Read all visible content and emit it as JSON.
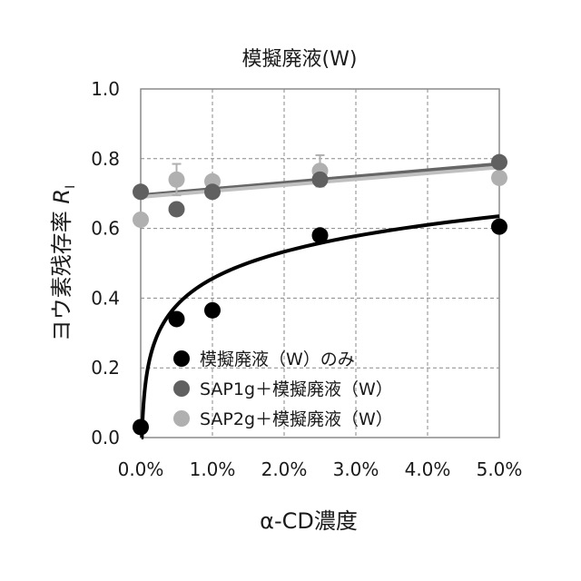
{
  "chart_data": {
    "type": "scatter",
    "title": "模擬廃液(W)",
    "xlabel": "α-CD濃度",
    "ylabel_main": "ヨウ素残存率 ",
    "ylabel_symbol": "R",
    "ylabel_subscript": "I",
    "xlim": [
      0,
      0.05
    ],
    "ylim": [
      0,
      1.0
    ],
    "x_ticks": [
      0,
      0.01,
      0.02,
      0.03,
      0.04,
      0.05
    ],
    "x_tick_labels": [
      "0.0%",
      "1.0%",
      "2.0%",
      "3.0%",
      "4.0%",
      "5.0%"
    ],
    "y_ticks": [
      0,
      0.2,
      0.4,
      0.6,
      0.8,
      1.0
    ],
    "y_tick_labels": [
      "0.0",
      "0.2",
      "0.4",
      "0.6",
      "0.8",
      "1.0"
    ],
    "grid": true,
    "legend_position": "bottom-left",
    "series": [
      {
        "name": "模擬廃液（W）のみ",
        "color": "#000000",
        "x": [
          0,
          0.005,
          0.01,
          0.025,
          0.05
        ],
        "y": [
          0.03,
          0.34,
          0.365,
          0.58,
          0.605
        ],
        "error": [
          0,
          0,
          0,
          0,
          0
        ],
        "trendline": {
          "kind": "log",
          "color": "#000000",
          "x_start": 0.0001,
          "x_end": 0.05,
          "y_end": 0.635,
          "y_at_0.001": 0.2
        }
      },
      {
        "name": "SAP1g＋模擬廃液（W）",
        "color": "#606060",
        "x": [
          0,
          0.005,
          0.01,
          0.025,
          0.05
        ],
        "y": [
          0.705,
          0.655,
          0.705,
          0.74,
          0.79
        ],
        "error": [
          0,
          0,
          0,
          0,
          0
        ],
        "trendline": {
          "kind": "linear",
          "color": "#666666",
          "y0": 0.695,
          "y_end": 0.785
        }
      },
      {
        "name": "SAP2g＋模擬廃液（W）",
        "color": "#b0b0b0",
        "x": [
          0,
          0.005,
          0.01,
          0.025,
          0.05
        ],
        "y": [
          0.625,
          0.74,
          0.735,
          0.765,
          0.745
        ],
        "error": [
          0,
          0.045,
          0,
          0.045,
          0
        ],
        "trendline": {
          "kind": "linear",
          "color": "#c0c0c0",
          "y0": 0.69,
          "y_end": 0.775
        }
      }
    ]
  }
}
